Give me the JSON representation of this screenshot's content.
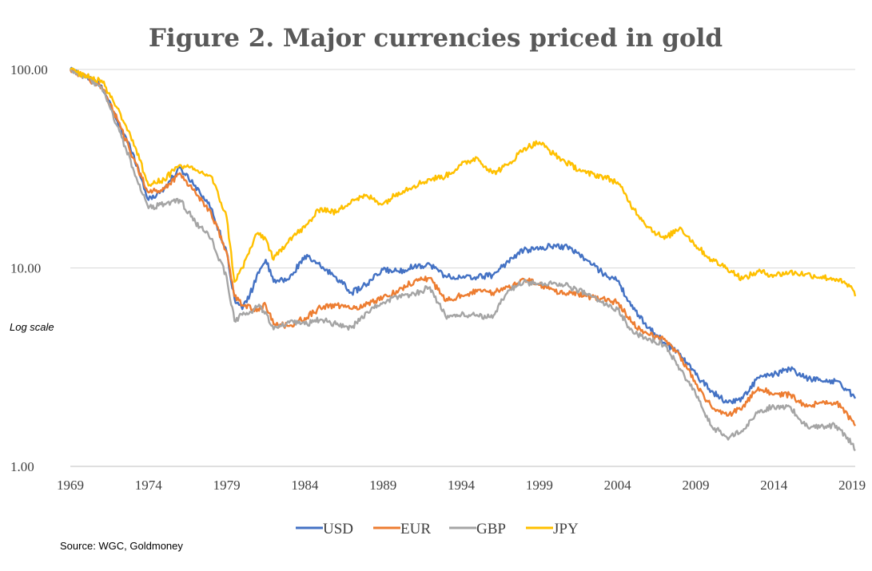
{
  "chart_data": {
    "type": "line",
    "title": "Figure 2.  Major currencies priced in gold",
    "xlabel": "",
    "ylabel": "",
    "y_scale": "log",
    "ylim": [
      1,
      100
    ],
    "xlim": [
      1969,
      2019.2
    ],
    "x_ticks": [
      "1969",
      "1974",
      "1979",
      "1984",
      "1989",
      "1994",
      "1999",
      "2004",
      "2009",
      "2014",
      "2019"
    ],
    "y_ticks": [
      "100.00",
      "10.00",
      "1.00"
    ],
    "y_tick_values": [
      100,
      10,
      1
    ],
    "annotation": "Log scale",
    "source": "Source: WGC, Goldmoney",
    "grid": "horizontal",
    "legend_position": "bottom",
    "series": [
      {
        "name": "USD",
        "color": "#4472C4",
        "points": [
          [
            1969,
            100
          ],
          [
            1970,
            92
          ],
          [
            1971,
            83
          ],
          [
            1972,
            55
          ],
          [
            1973,
            38
          ],
          [
            1974,
            22
          ],
          [
            1975,
            25
          ],
          [
            1976,
            32
          ],
          [
            1977,
            26
          ],
          [
            1978,
            20
          ],
          [
            1979,
            12
          ],
          [
            1979.5,
            7
          ],
          [
            1980,
            6.2
          ],
          [
            1980.7,
            8
          ],
          [
            1981,
            9.5
          ],
          [
            1981.5,
            11
          ],
          [
            1982,
            8.5
          ],
          [
            1983,
            8.8
          ],
          [
            1984,
            11.5
          ],
          [
            1985,
            10.2
          ],
          [
            1986,
            9
          ],
          [
            1987,
            7.5
          ],
          [
            1988,
            8.3
          ],
          [
            1989,
            9.8
          ],
          [
            1990,
            9.6
          ],
          [
            1991,
            10.2
          ],
          [
            1992,
            10.4
          ],
          [
            1993,
            9.1
          ],
          [
            1994,
            8.9
          ],
          [
            1995,
            9
          ],
          [
            1996,
            9.2
          ],
          [
            1997,
            10.8
          ],
          [
            1998,
            12.3
          ],
          [
            1999,
            12.5
          ],
          [
            2000,
            13
          ],
          [
            2001,
            12.6
          ],
          [
            2002,
            11
          ],
          [
            2003,
            9.5
          ],
          [
            2004,
            8.6
          ],
          [
            2005,
            6.2
          ],
          [
            2006,
            5
          ],
          [
            2007,
            4.2
          ],
          [
            2008,
            3.7
          ],
          [
            2009,
            2.9
          ],
          [
            2010,
            2.4
          ],
          [
            2011,
            2.1
          ],
          [
            2012,
            2.2
          ],
          [
            2013,
            2.8
          ],
          [
            2014,
            2.9
          ],
          [
            2015,
            3.1
          ],
          [
            2016,
            2.8
          ],
          [
            2017,
            2.7
          ],
          [
            2018,
            2.7
          ],
          [
            2019,
            2.3
          ],
          [
            2019.2,
            2.2
          ]
        ]
      },
      {
        "name": "EUR",
        "color": "#ED7D31",
        "points": [
          [
            1969,
            100
          ],
          [
            1970,
            91
          ],
          [
            1971,
            82
          ],
          [
            1972,
            56
          ],
          [
            1973,
            36
          ],
          [
            1974,
            24
          ],
          [
            1975,
            25
          ],
          [
            1976,
            30
          ],
          [
            1977,
            24
          ],
          [
            1978,
            19
          ],
          [
            1979,
            12
          ],
          [
            1979.5,
            7.2
          ],
          [
            1980,
            6.5
          ],
          [
            1980.7,
            6.2
          ],
          [
            1981,
            6.2
          ],
          [
            1981.5,
            6.5
          ],
          [
            1982,
            5.2
          ],
          [
            1983,
            5.1
          ],
          [
            1984,
            5.6
          ],
          [
            1985,
            6.3
          ],
          [
            1986,
            6.5
          ],
          [
            1987,
            6.2
          ],
          [
            1988,
            6.6
          ],
          [
            1989,
            7.1
          ],
          [
            1990,
            7.7
          ],
          [
            1991,
            8.6
          ],
          [
            1992,
            8.9
          ],
          [
            1993,
            6.8
          ],
          [
            1994,
            7.3
          ],
          [
            1995,
            7.6
          ],
          [
            1996,
            7.5
          ],
          [
            1997,
            8
          ],
          [
            1998,
            8.8
          ],
          [
            1999,
            8.2
          ],
          [
            2000,
            7.6
          ],
          [
            2001,
            7.5
          ],
          [
            2002,
            7.2
          ],
          [
            2003,
            7
          ],
          [
            2004,
            6.7
          ],
          [
            2005,
            5.2
          ],
          [
            2006,
            4.6
          ],
          [
            2007,
            4.4
          ],
          [
            2008,
            3.6
          ],
          [
            2009,
            2.6
          ],
          [
            2010,
            2
          ],
          [
            2011,
            1.8
          ],
          [
            2012,
            2
          ],
          [
            2013,
            2.5
          ],
          [
            2014,
            2.3
          ],
          [
            2015,
            2.3
          ],
          [
            2016,
            2
          ],
          [
            2017,
            2.1
          ],
          [
            2018,
            2.1
          ],
          [
            2019,
            1.7
          ],
          [
            2019.2,
            1.6
          ]
        ]
      },
      {
        "name": "GBP",
        "color": "#A5A5A5",
        "points": [
          [
            1969,
            100
          ],
          [
            1970,
            91
          ],
          [
            1971,
            81
          ],
          [
            1972,
            52
          ],
          [
            1973,
            32
          ],
          [
            1974,
            20
          ],
          [
            1975,
            21
          ],
          [
            1976,
            22
          ],
          [
            1977,
            17
          ],
          [
            1978,
            14
          ],
          [
            1979,
            9
          ],
          [
            1979.5,
            5.4
          ],
          [
            1980,
            5.8
          ],
          [
            1980.7,
            6.1
          ],
          [
            1981,
            6.4
          ],
          [
            1981.5,
            6
          ],
          [
            1982,
            4.9
          ],
          [
            1983,
            5.3
          ],
          [
            1984,
            5.2
          ],
          [
            1985,
            5.5
          ],
          [
            1986,
            5.2
          ],
          [
            1987,
            5
          ],
          [
            1988,
            6
          ],
          [
            1989,
            6.7
          ],
          [
            1990,
            7.2
          ],
          [
            1991,
            7.4
          ],
          [
            1992,
            8
          ],
          [
            1993,
            5.7
          ],
          [
            1994,
            5.8
          ],
          [
            1995,
            5.8
          ],
          [
            1996,
            5.6
          ],
          [
            1997,
            7.7
          ],
          [
            1998,
            8.5
          ],
          [
            1999,
            8.3
          ],
          [
            2000,
            8.4
          ],
          [
            2001,
            8
          ],
          [
            2002,
            7.4
          ],
          [
            2003,
            6.7
          ],
          [
            2004,
            6.2
          ],
          [
            2005,
            4.7
          ],
          [
            2006,
            4.4
          ],
          [
            2007,
            4.1
          ],
          [
            2008,
            3.1
          ],
          [
            2009,
            2.3
          ],
          [
            2010,
            1.6
          ],
          [
            2011,
            1.4
          ],
          [
            2012,
            1.5
          ],
          [
            2013,
            1.9
          ],
          [
            2014,
            2
          ],
          [
            2015,
            2
          ],
          [
            2016,
            1.6
          ],
          [
            2017,
            1.6
          ],
          [
            2018,
            1.6
          ],
          [
            2019,
            1.3
          ],
          [
            2019.2,
            1.2
          ]
        ]
      },
      {
        "name": "JPY",
        "color": "#FFC000",
        "points": [
          [
            1969,
            100
          ],
          [
            1970,
            93
          ],
          [
            1971,
            88
          ],
          [
            1972,
            64
          ],
          [
            1973,
            44
          ],
          [
            1974,
            26
          ],
          [
            1975,
            28
          ],
          [
            1976,
            33
          ],
          [
            1977,
            31
          ],
          [
            1978,
            29
          ],
          [
            1979,
            18
          ],
          [
            1979.5,
            8.5
          ],
          [
            1980,
            10
          ],
          [
            1980.7,
            13.5
          ],
          [
            1981,
            15
          ],
          [
            1981.5,
            14
          ],
          [
            1982,
            11
          ],
          [
            1983,
            14
          ],
          [
            1984,
            16
          ],
          [
            1985,
            20
          ],
          [
            1986,
            19
          ],
          [
            1987,
            22
          ],
          [
            1988,
            23
          ],
          [
            1989,
            21
          ],
          [
            1990,
            24
          ],
          [
            1991,
            26
          ],
          [
            1992,
            28
          ],
          [
            1993,
            29
          ],
          [
            1994,
            33
          ],
          [
            1995,
            36
          ],
          [
            1996,
            30
          ],
          [
            1997,
            33
          ],
          [
            1998,
            40
          ],
          [
            1999,
            43
          ],
          [
            2000,
            37
          ],
          [
            2001,
            33
          ],
          [
            2002,
            30
          ],
          [
            2003,
            29
          ],
          [
            2004,
            27
          ],
          [
            2005,
            20
          ],
          [
            2006,
            16
          ],
          [
            2007,
            14
          ],
          [
            2008,
            16
          ],
          [
            2009,
            13
          ],
          [
            2010,
            11
          ],
          [
            2011,
            10
          ],
          [
            2012,
            8.8
          ],
          [
            2013,
            9.6
          ],
          [
            2014,
            9.2
          ],
          [
            2015,
            9.5
          ],
          [
            2016,
            9.3
          ],
          [
            2017,
            9
          ],
          [
            2018,
            8.8
          ],
          [
            2019,
            7.9
          ],
          [
            2019.2,
            7.2
          ]
        ]
      }
    ]
  }
}
